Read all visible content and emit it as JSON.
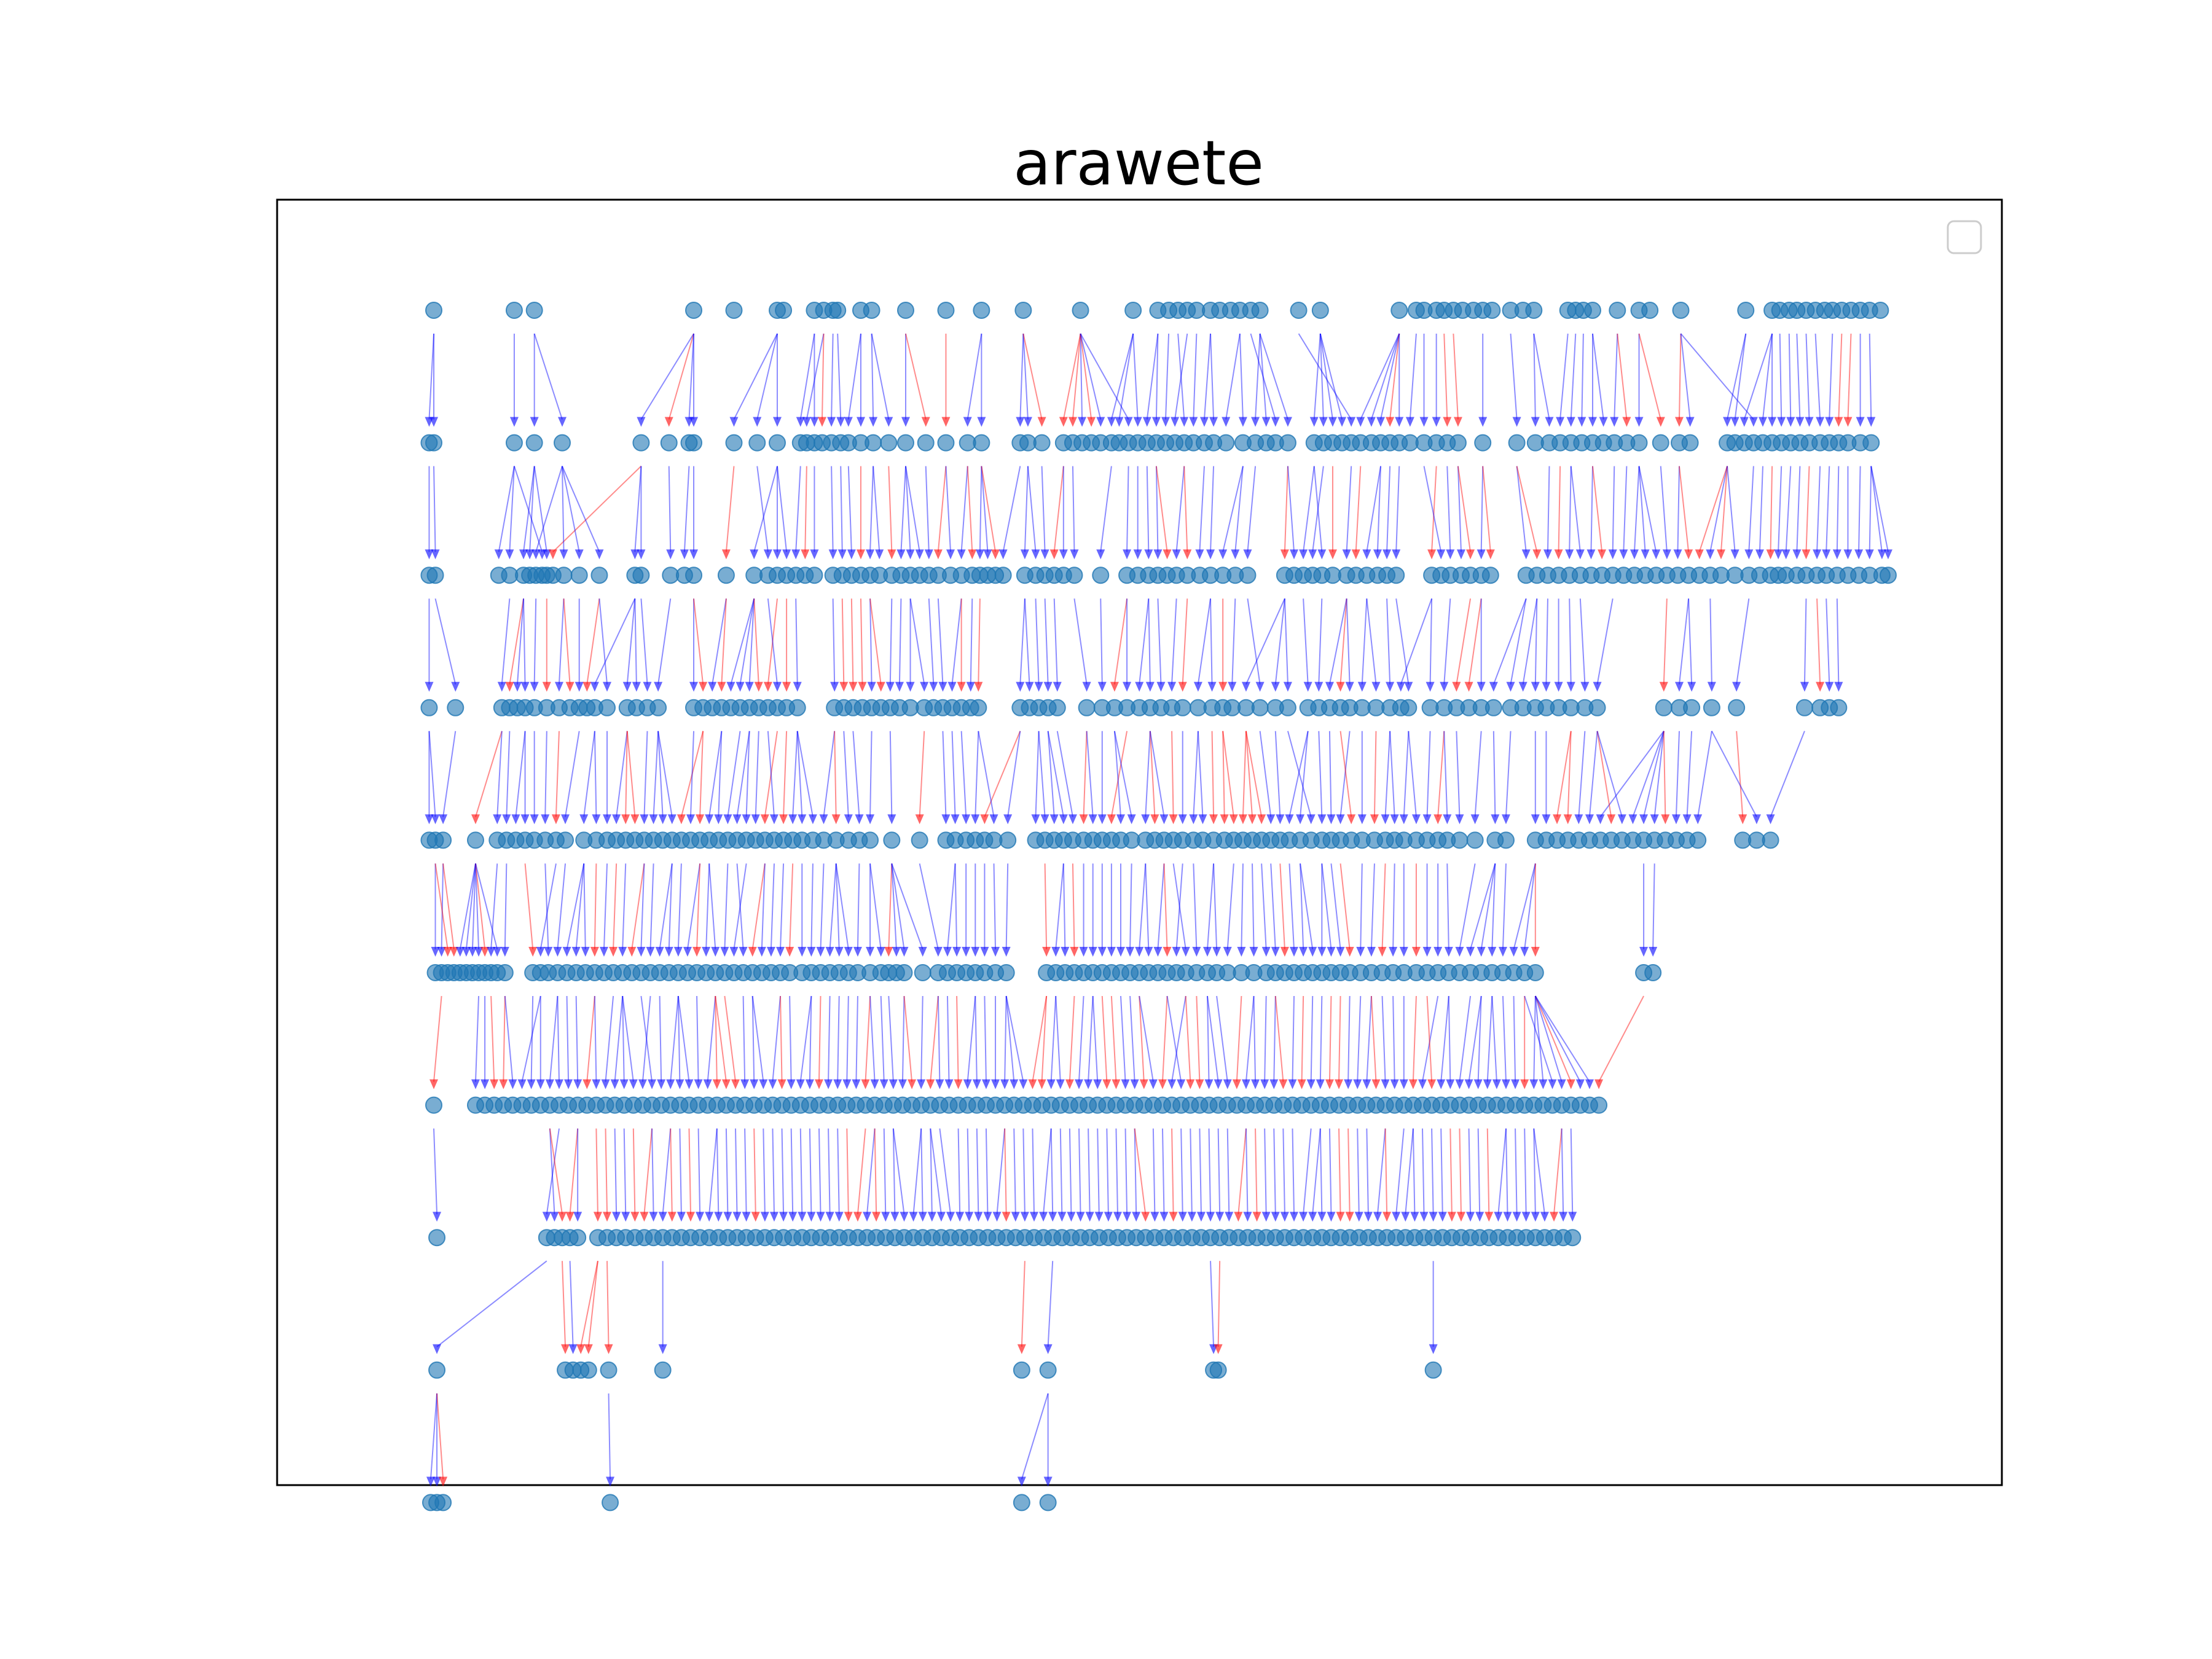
{
  "title": "arawete",
  "chart_data": {
    "type": "tree",
    "title": "arawete",
    "layers": [
      [
        0.0,
        5.2,
        6.5,
        16.8,
        19.4,
        22.2,
        22.6,
        24.6,
        25.2,
        25.8,
        26.1,
        27.6,
        28.3,
        30.5,
        33.1,
        35.4,
        38.1,
        41.8,
        45.2,
        46.8,
        47.5,
        48.1,
        48.7,
        49.3,
        50.2,
        50.8,
        51.5,
        52.1,
        52.8,
        53.4,
        55.9,
        57.3,
        62.4,
        63.5,
        64.0,
        64.8,
        65.3,
        65.9,
        66.5,
        67.2,
        67.8,
        68.4,
        69.6,
        70.4,
        71.1,
        73.3,
        73.8,
        74.3,
        74.9,
        76.5,
        77.9,
        78.6,
        80.6,
        84.8,
        86.5,
        87.0,
        87.6,
        88.1,
        88.7,
        89.3,
        89.9,
        90.4,
        91.0,
        91.6,
        92.2,
        92.8,
        93.5
      ],
      [
        -0.3,
        0.0,
        5.2,
        6.5,
        8.3,
        13.4,
        15.2,
        16.5,
        16.8,
        19.4,
        20.9,
        22.2,
        23.7,
        24.1,
        24.6,
        25.1,
        25.7,
        26.3,
        26.8,
        27.6,
        28.4,
        29.4,
        30.5,
        31.8,
        33.1,
        34.5,
        35.4,
        37.9,
        38.4,
        39.3,
        40.7,
        41.3,
        41.9,
        42.5,
        43.1,
        43.8,
        44.3,
        44.9,
        45.5,
        46.1,
        46.7,
        47.3,
        47.9,
        48.5,
        49.1,
        49.8,
        50.4,
        51.2,
        52.3,
        53.1,
        53.8,
        54.4,
        55.2,
        56.9,
        57.5,
        58.1,
        58.7,
        59.3,
        59.9,
        60.6,
        61.2,
        61.8,
        62.4,
        63.1,
        64.0,
        64.8,
        65.5,
        66.2,
        67.8,
        70.0,
        71.2,
        72.1,
        72.8,
        73.5,
        74.2,
        74.9,
        75.6,
        76.3,
        77.1,
        77.9,
        79.3,
        80.5,
        81.2,
        83.6,
        84.1,
        84.7,
        85.3,
        85.9,
        86.5,
        87.1,
        87.7,
        88.3,
        88.9,
        89.6,
        90.2,
        90.8,
        91.4,
        92.2,
        92.9
      ],
      [
        -0.3,
        0.1,
        4.2,
        4.9,
        5.8,
        6.2,
        6.6,
        7.0,
        7.3,
        7.7,
        8.4,
        9.4,
        10.7,
        13.0,
        13.4,
        15.3,
        16.2,
        16.8,
        18.9,
        20.7,
        21.6,
        22.2,
        22.8,
        23.4,
        24.0,
        24.6,
        25.8,
        26.4,
        27.0,
        27.6,
        28.2,
        28.8,
        29.6,
        30.2,
        30.8,
        31.4,
        32.0,
        32.6,
        33.4,
        34.1,
        34.8,
        35.3,
        35.8,
        36.3,
        36.8,
        38.2,
        38.9,
        39.5,
        40.1,
        40.7,
        41.4,
        43.1,
        44.8,
        45.5,
        46.2,
        46.8,
        47.4,
        48.0,
        48.7,
        49.5,
        50.2,
        51.0,
        51.8,
        52.6,
        55.0,
        55.6,
        56.2,
        56.8,
        57.4,
        58.1,
        59.0,
        59.6,
        60.3,
        61.0,
        61.6,
        62.2,
        64.5,
        65.1,
        65.7,
        66.4,
        67.0,
        67.7,
        68.3,
        70.6,
        71.3,
        72.0,
        72.7,
        73.4,
        74.1,
        74.8,
        75.5,
        76.2,
        76.9,
        77.6,
        78.3,
        79.0,
        79.7,
        80.4,
        81.1,
        81.8,
        82.5,
        83.2,
        84.1,
        85.0,
        85.7,
        86.4,
        86.9,
        87.4,
        88.1,
        88.7,
        89.4,
        90.0,
        90.7,
        91.4,
        92.1,
        92.8,
        93.6,
        94.0
      ],
      [
        -0.3,
        1.4,
        4.4,
        4.9,
        5.4,
        5.9,
        6.5,
        7.3,
        8.1,
        8.8,
        9.4,
        9.9,
        10.4,
        11.2,
        12.5,
        13.1,
        13.8,
        14.5,
        16.8,
        17.4,
        18.0,
        18.6,
        19.2,
        19.8,
        20.4,
        21.0,
        21.6,
        22.2,
        22.8,
        23.5,
        25.9,
        26.5,
        27.1,
        27.7,
        28.3,
        28.9,
        29.5,
        30.1,
        30.8,
        31.7,
        32.3,
        32.9,
        33.5,
        34.1,
        34.7,
        35.2,
        37.9,
        38.5,
        39.1,
        39.7,
        40.3,
        42.2,
        43.2,
        44.0,
        44.8,
        45.6,
        46.3,
        47.0,
        47.7,
        48.4,
        49.4,
        50.3,
        51.0,
        51.6,
        52.5,
        53.4,
        54.4,
        55.2,
        56.5,
        57.2,
        57.9,
        58.6,
        59.2,
        60.0,
        60.9,
        61.8,
        62.5,
        63.0,
        64.4,
        65.3,
        66.1,
        66.9,
        67.7,
        68.5,
        69.6,
        70.4,
        71.2,
        71.9,
        72.7,
        73.5,
        74.4,
        75.2,
        79.5,
        80.5,
        81.3,
        82.6,
        84.2,
        88.6,
        89.6,
        90.2,
        90.8
      ],
      [
        -0.3,
        0.1,
        0.6,
        2.7,
        4.1,
        4.7,
        5.3,
        5.9,
        6.5,
        7.2,
        7.9,
        8.5,
        9.7,
        10.5,
        11.2,
        11.8,
        12.4,
        13.0,
        13.6,
        14.2,
        14.8,
        15.4,
        16.0,
        16.6,
        17.2,
        17.8,
        18.4,
        19.0,
        19.6,
        20.2,
        20.8,
        21.4,
        22.0,
        22.6,
        23.2,
        23.8,
        24.5,
        25.2,
        26.0,
        26.8,
        27.5,
        28.2,
        29.6,
        31.4,
        33.1,
        33.7,
        34.4,
        35.0,
        35.6,
        36.2,
        37.1,
        38.9,
        39.5,
        40.1,
        40.7,
        41.3,
        42.0,
        42.6,
        43.2,
        43.8,
        44.4,
        45.1,
        46.0,
        46.6,
        47.2,
        47.8,
        48.4,
        49.1,
        49.7,
        50.4,
        51.1,
        51.7,
        52.3,
        52.9,
        53.5,
        54.1,
        54.7,
        55.3,
        56.0,
        56.7,
        57.4,
        58.0,
        58.6,
        59.3,
        60.0,
        60.8,
        61.5,
        62.1,
        62.7,
        63.5,
        64.2,
        64.9,
        65.5,
        66.3,
        67.3,
        68.6,
        69.3,
        71.2,
        71.9,
        72.6,
        73.3,
        74.0,
        74.7,
        75.4,
        76.1,
        76.8,
        77.5,
        78.2,
        78.9,
        79.6,
        80.3,
        81.0,
        81.7,
        84.6,
        85.5,
        86.4
      ],
      [
        0.1,
        0.5,
        0.9,
        1.3,
        1.7,
        2.1,
        2.5,
        2.9,
        3.3,
        3.7,
        4.1,
        4.6,
        6.4,
        6.9,
        7.4,
        8.0,
        8.6,
        9.2,
        9.8,
        10.4,
        11.0,
        11.6,
        12.2,
        12.8,
        13.4,
        14.0,
        14.6,
        15.2,
        15.8,
        16.4,
        17.0,
        17.6,
        18.2,
        18.8,
        19.4,
        20.0,
        20.6,
        21.2,
        21.8,
        22.4,
        23.0,
        23.8,
        24.4,
        25.0,
        25.6,
        26.2,
        26.8,
        27.4,
        28.2,
        28.9,
        29.4,
        29.9,
        30.4,
        31.6,
        32.6,
        33.2,
        33.8,
        34.4,
        35.0,
        35.6,
        36.3,
        37.0,
        39.6,
        40.2,
        40.8,
        41.4,
        42.0,
        42.6,
        43.2,
        43.8,
        44.4,
        45.0,
        45.6,
        46.2,
        46.8,
        47.4,
        48.0,
        48.6,
        49.3,
        50.0,
        50.6,
        51.3,
        52.2,
        53.0,
        53.8,
        54.4,
        55.0,
        55.6,
        56.2,
        56.8,
        57.4,
        58.0,
        58.6,
        59.2,
        59.9,
        60.6,
        61.3,
        62.0,
        62.7,
        63.5,
        64.2,
        64.9,
        65.6,
        66.3,
        67.0,
        67.7,
        68.4,
        69.1,
        69.8,
        70.5,
        71.2,
        78.2,
        78.8
      ],
      [
        0.0,
        2.7,
        3.3,
        3.9,
        4.5,
        5.1,
        5.7,
        6.3,
        6.9,
        7.5,
        8.1,
        8.7,
        9.3,
        9.9,
        10.5,
        11.1,
        11.7,
        12.3,
        12.9,
        13.5,
        14.1,
        14.7,
        15.3,
        15.9,
        16.5,
        17.1,
        17.7,
        18.3,
        18.9,
        19.5,
        20.1,
        20.7,
        21.3,
        21.9,
        22.5,
        23.1,
        23.7,
        24.3,
        24.9,
        25.5,
        26.1,
        26.7,
        27.3,
        27.9,
        28.5,
        29.1,
        29.7,
        30.3,
        30.9,
        31.5,
        32.1,
        32.7,
        33.3,
        33.9,
        34.5,
        35.1,
        35.7,
        36.3,
        36.9,
        37.5,
        38.1,
        38.7,
        39.3,
        39.9,
        40.5,
        41.1,
        41.7,
        42.3,
        42.9,
        43.5,
        44.1,
        44.7,
        45.3,
        45.9,
        46.5,
        47.1,
        47.7,
        48.3,
        48.9,
        49.5,
        50.1,
        50.7,
        51.3,
        51.9,
        52.5,
        53.1,
        53.7,
        54.3,
        54.9,
        55.5,
        56.1,
        56.7,
        57.3,
        57.9,
        58.5,
        59.1,
        59.7,
        60.3,
        60.9,
        61.5,
        62.1,
        62.7,
        63.3,
        63.9,
        64.5,
        65.1,
        65.7,
        66.3,
        66.9,
        67.5,
        68.1,
        68.7,
        69.3,
        69.9,
        70.5,
        71.1,
        71.7,
        72.3,
        72.9,
        73.5,
        74.1,
        74.7,
        75.3
      ],
      [
        0.2,
        7.3,
        7.8,
        8.3,
        8.8,
        9.3,
        10.6,
        11.2,
        11.8,
        12.4,
        13.0,
        13.6,
        14.2,
        14.8,
        15.4,
        16.0,
        16.6,
        17.2,
        17.8,
        18.4,
        19.0,
        19.6,
        20.2,
        20.8,
        21.4,
        22.0,
        22.6,
        23.2,
        23.8,
        24.4,
        25.0,
        25.6,
        26.2,
        26.8,
        27.4,
        28.0,
        28.6,
        29.2,
        29.8,
        30.4,
        31.0,
        31.6,
        32.2,
        32.8,
        33.4,
        34.0,
        34.6,
        35.2,
        35.8,
        36.4,
        37.0,
        37.6,
        38.2,
        38.8,
        39.4,
        40.0,
        40.6,
        41.2,
        41.8,
        42.4,
        43.0,
        43.6,
        44.2,
        44.8,
        45.4,
        46.0,
        46.6,
        47.2,
        47.8,
        48.4,
        49.0,
        49.6,
        50.2,
        50.8,
        51.4,
        52.0,
        52.6,
        53.2,
        53.8,
        54.4,
        55.0,
        55.6,
        56.2,
        56.8,
        57.4,
        58.0,
        58.6,
        59.2,
        59.8,
        60.4,
        61.0,
        61.6,
        62.2,
        62.8,
        63.4,
        64.0,
        64.6,
        65.2,
        65.8,
        66.4,
        67.0,
        67.6,
        68.2,
        68.8,
        69.4,
        70.0,
        70.6,
        71.2,
        71.8,
        72.4,
        73.0,
        73.6
      ],
      [
        0.2,
        8.5,
        9.0,
        9.5,
        10.0,
        11.3,
        14.8,
        38.0,
        39.7,
        50.4,
        50.7,
        64.6
      ],
      [
        -0.2,
        0.2,
        0.6,
        11.4,
        38.0,
        39.7
      ]
    ],
    "edges": {
      "directed": true,
      "colors": [
        "#ff0000",
        "#0000ff"
      ],
      "arrowhead": "triangle-down"
    },
    "node_color": "#1f77b4",
    "node_alpha": 0.6,
    "legend": "top-right",
    "legend_entries": [],
    "axes_ticks": false
  }
}
